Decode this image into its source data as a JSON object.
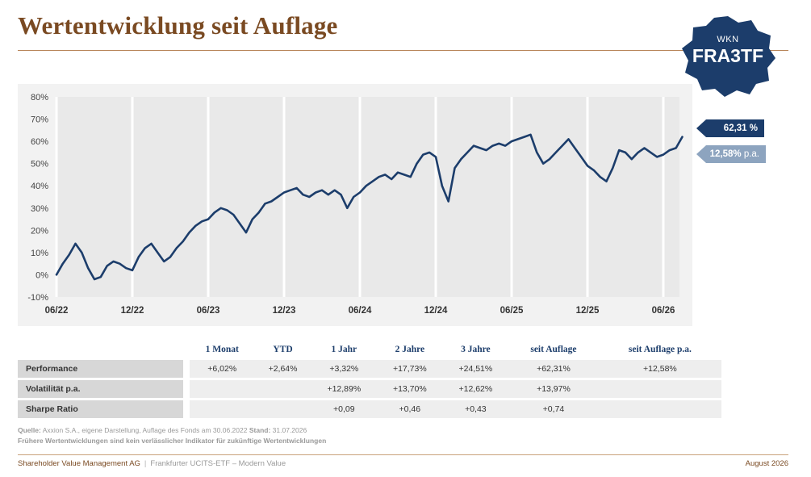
{
  "title": "Wertentwicklung seit Auflage",
  "badge": {
    "small": "WKN",
    "big": "FRA3TF"
  },
  "tags": {
    "total": "62,31 %",
    "pa_value": "12,58%",
    "pa_suffix": "p.a."
  },
  "colors": {
    "line": "#1c3d6b",
    "brand": "#7a4a22",
    "tag_light": "#8da4bf"
  },
  "chart_data": {
    "type": "line",
    "title": "",
    "xlabel": "",
    "ylabel": "",
    "ylim": [
      -10,
      80
    ],
    "y_ticks": [
      -10,
      0,
      10,
      20,
      30,
      40,
      50,
      60,
      70,
      80
    ],
    "y_tick_labels": [
      "-10%",
      "0%",
      "10%",
      "20%",
      "30%",
      "40%",
      "50%",
      "60%",
      "70%",
      "80%"
    ],
    "x_ticks": [
      "06/22",
      "12/22",
      "06/23",
      "12/23",
      "06/24",
      "12/24",
      "06/25",
      "12/25",
      "06/26"
    ],
    "grid": "vertical",
    "x_unit": "months since launch (06/22)",
    "series": [
      {
        "name": "",
        "x": [
          0,
          0.5,
          1,
          1.5,
          2,
          2.5,
          3,
          3.5,
          4,
          4.5,
          5,
          5.5,
          6,
          6.5,
          7,
          7.5,
          8,
          8.5,
          9,
          9.5,
          10,
          10.5,
          11,
          11.5,
          12,
          12.5,
          13,
          13.5,
          14,
          14.5,
          15,
          15.5,
          16,
          16.5,
          17,
          17.5,
          18,
          18.5,
          19,
          19.5,
          20,
          20.5,
          21,
          21.5,
          22,
          22.5,
          23,
          23.5,
          24,
          24.5,
          25,
          25.5,
          26,
          26.5,
          27,
          27.5,
          28,
          28.5,
          29,
          29.5,
          30,
          30.5,
          31,
          31.5,
          32,
          32.5,
          33,
          33.5,
          34,
          34.5,
          35,
          35.5,
          36,
          36.5,
          37,
          37.5,
          38,
          38.5,
          39,
          39.5,
          40,
          40.5,
          41,
          41.5,
          42,
          42.5,
          43,
          43.5,
          44,
          44.5,
          45,
          45.5,
          46,
          46.5,
          47,
          47.5,
          48,
          48.5,
          49,
          49.5
        ],
        "values": [
          0,
          5,
          9,
          14,
          10,
          3,
          -2,
          -1,
          4,
          6,
          5,
          3,
          2,
          8,
          12,
          14,
          10,
          6,
          8,
          12,
          15,
          19,
          22,
          24,
          25,
          28,
          30,
          29,
          27,
          23,
          19,
          25,
          28,
          32,
          33,
          35,
          37,
          38,
          39,
          36,
          35,
          37,
          38,
          36,
          38,
          36,
          30,
          35,
          37,
          40,
          42,
          44,
          45,
          43,
          46,
          45,
          44,
          50,
          54,
          55,
          53,
          40,
          33,
          48,
          52,
          55,
          58,
          57,
          56,
          58,
          59,
          58,
          60,
          61,
          62,
          63,
          55,
          50,
          52,
          55,
          58,
          61,
          57,
          53,
          49,
          47,
          44,
          42,
          48,
          56,
          55,
          52,
          55,
          57,
          55,
          53,
          54,
          56,
          57,
          62
        ]
      }
    ],
    "end_value": 62.31
  },
  "table": {
    "headers": [
      "1 Monat",
      "YTD",
      "1 Jahr",
      "2 Jahre",
      "3 Jahre",
      "seit Auflage",
      "seit Auflage p.a."
    ],
    "rows": [
      {
        "label": "Performance",
        "values": [
          "+6,02%",
          "+2,64%",
          "+3,32%",
          "+17,73%",
          "+24,51%",
          "+62,31%",
          "+12,58%"
        ]
      },
      {
        "label": "Volatilität p.a.",
        "values": [
          "",
          "",
          "+12,89%",
          "+13,70%",
          "+12,62%",
          "+13,97%",
          ""
        ]
      },
      {
        "label": "Sharpe Ratio",
        "values": [
          "",
          "",
          "+0,09",
          "+0,46",
          "+0,43",
          "+0,74",
          ""
        ]
      }
    ]
  },
  "source": {
    "label": "Quelle:",
    "text": "Axxion S.A., eigene Darstellung, Auflage des Fonds am 30.06.2022",
    "stand_label": "Stand:",
    "stand_value": "31.07.2026"
  },
  "disclaimer": "Frühere Wertentwicklungen sind kein verlässlicher Indikator für zukünftige Wertentwicklungen",
  "footer": {
    "company": "Shareholder Value Management AG",
    "separator": "|",
    "product": "Frankfurter UCITS-ETF – Modern Value",
    "date": "August 2026"
  }
}
